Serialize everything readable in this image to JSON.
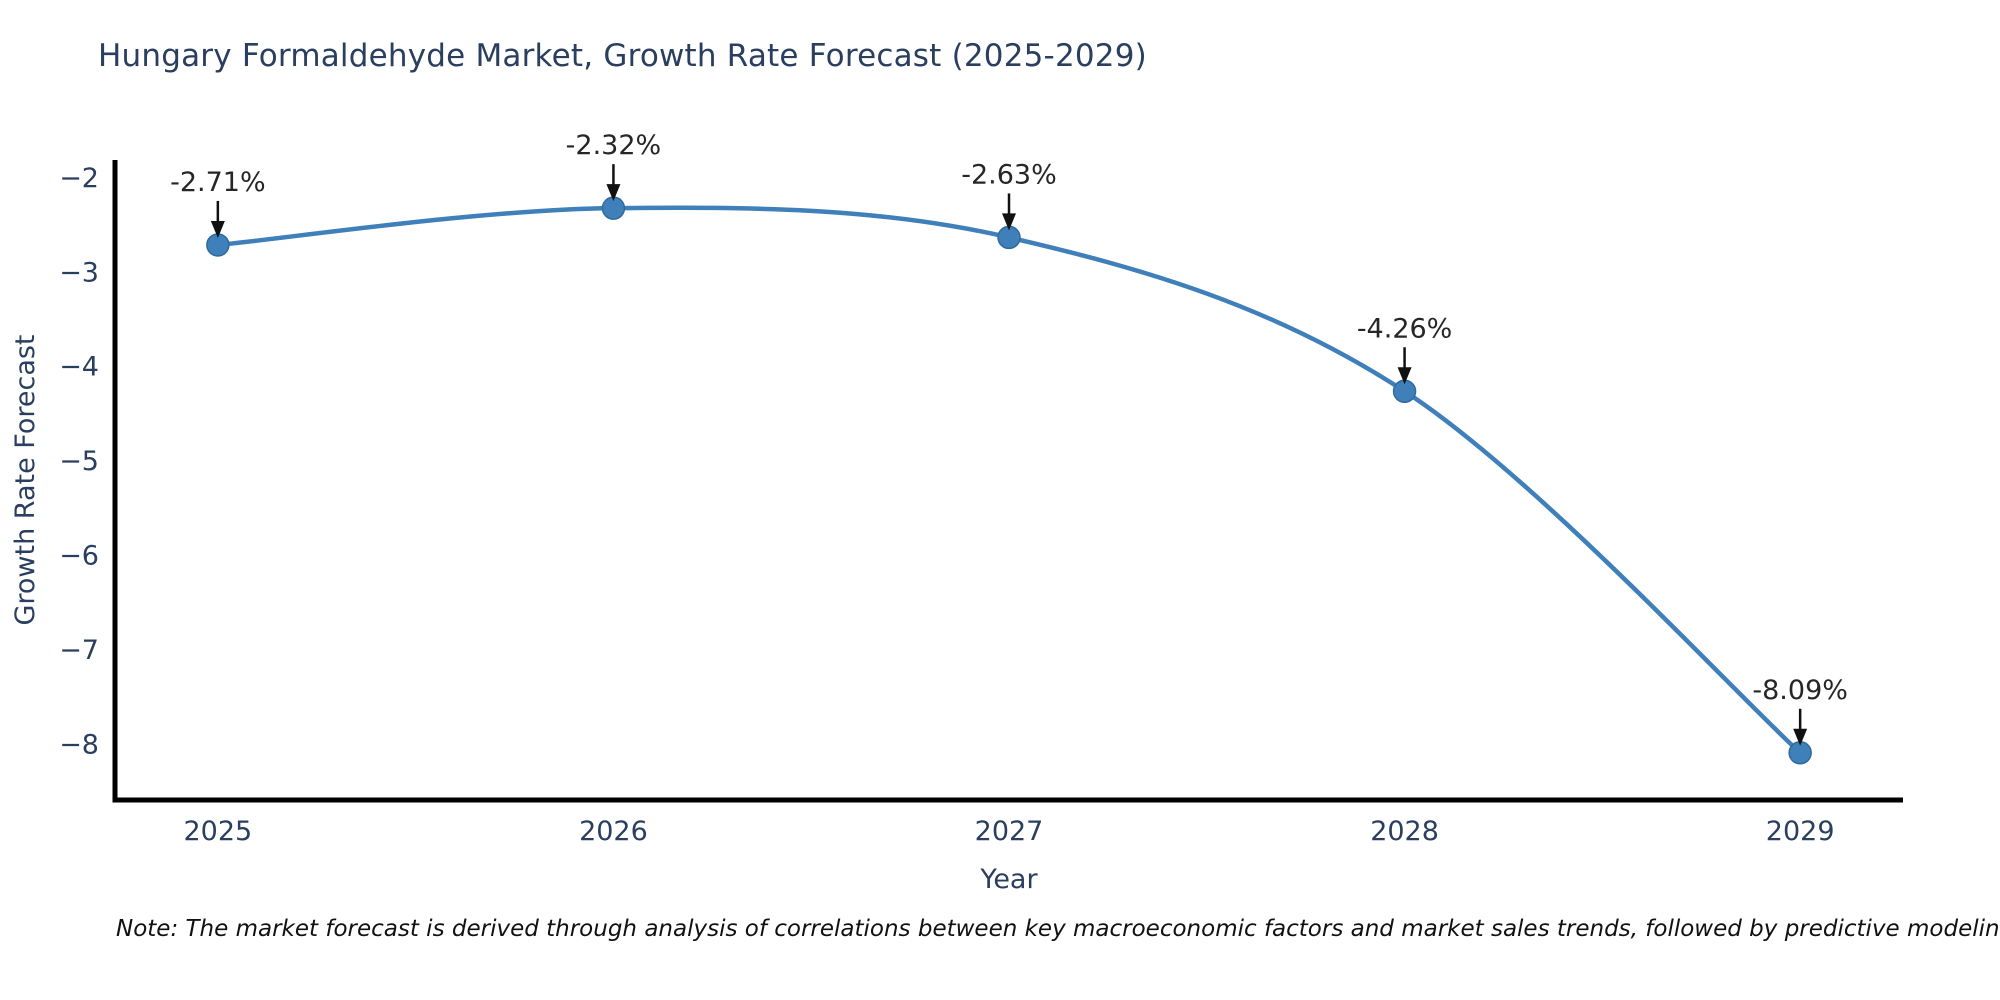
{
  "figure": {
    "title": "Hungary Formaldehyde Market, Growth Rate Forecast (2025-2029)",
    "note": "Note: The market forecast is derived through analysis of correlations between key macroeconomic factors and market sales trends, followed by predictive modeling to project future sales",
    "colors": {
      "line": "#3f7fba",
      "marker_fill": "#3f7fba",
      "marker_edge": "#2f6b9d",
      "axis_line": "#000000",
      "label_text": "#2a3f5f",
      "annotation_text": "#262626",
      "arrow": "#111111",
      "background": "#ffffff"
    }
  },
  "chart_data": {
    "type": "line",
    "title": "Hungary Formaldehyde Market, Growth Rate Forecast (2025-2029)",
    "xlabel": "Year",
    "ylabel": "Growth Rate Forecast",
    "x": [
      2025,
      2026,
      2027,
      2028,
      2029
    ],
    "series": [
      {
        "name": "Growth Rate Forecast",
        "values": [
          -2.71,
          -2.32,
          -2.63,
          -4.26,
          -8.09
        ],
        "point_labels": [
          "-2.71%",
          "-2.32%",
          "-2.63%",
          "-4.26%",
          "-8.09%"
        ]
      }
    ],
    "xticks": [
      "2025",
      "2026",
      "2027",
      "2028",
      "2029"
    ],
    "yticks": [
      -2,
      -3,
      -4,
      -5,
      -6,
      -7,
      -8
    ],
    "xlim": [
      2024.74,
      2029.26
    ],
    "ylim": [
      -8.59,
      -1.81
    ],
    "grid": false,
    "legend": "none",
    "line_shape": "spline",
    "annotation_style": "value label above point with downward arrow"
  }
}
